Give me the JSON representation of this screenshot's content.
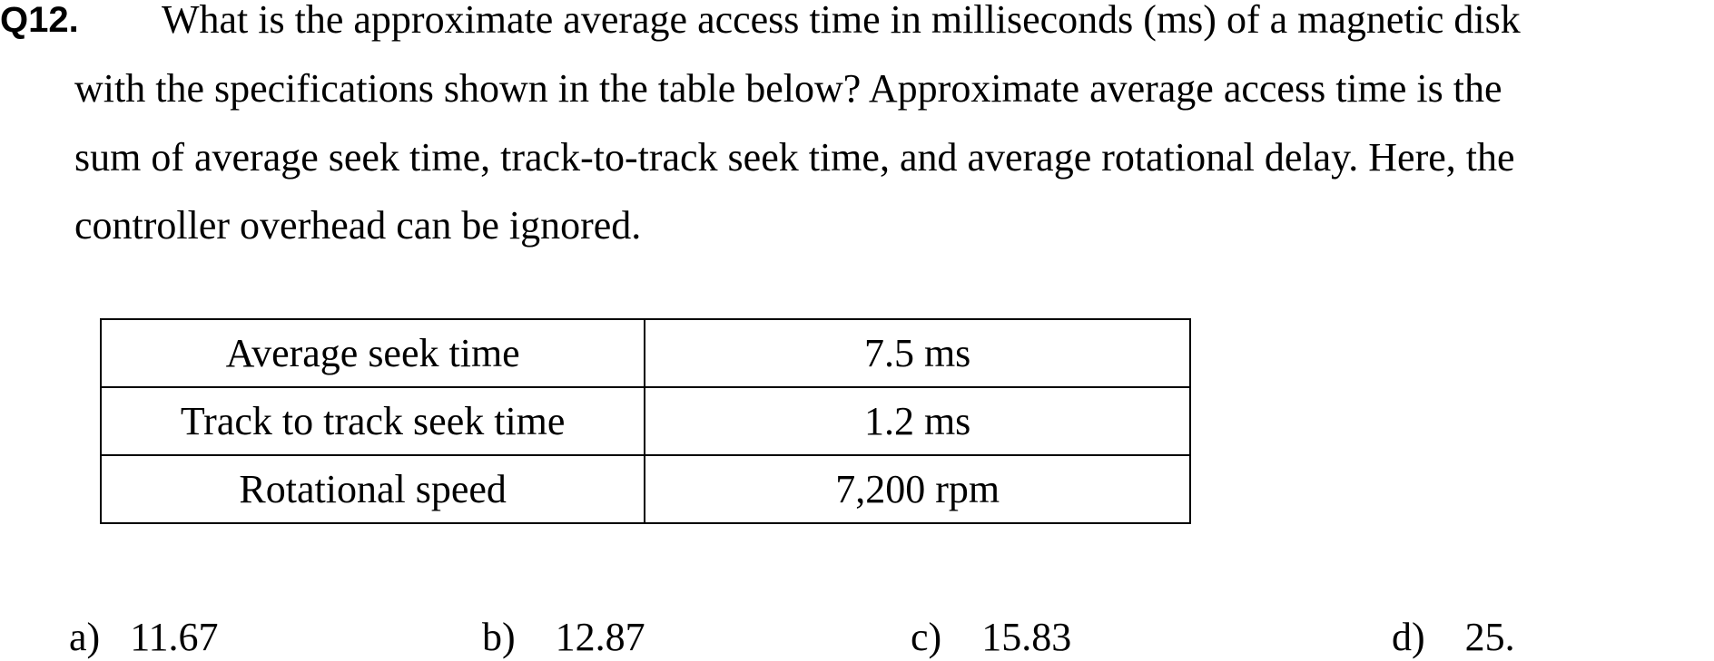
{
  "question": {
    "label": "Q12.",
    "lines": [
      "What is the approximate average access time in milliseconds (ms) of a magnetic disk",
      "with the specifications shown in the table below? Approximate average access time is the",
      "sum of average seek time, track-to-track seek time, and average rotational delay. Here, the",
      "controller overhead can be ignored."
    ]
  },
  "table": {
    "rows": [
      {
        "label": "Average seek time",
        "value": "7.5 ms"
      },
      {
        "label": "Track to track seek time",
        "value": "1.2 ms"
      },
      {
        "label": "Rotational speed",
        "value": "7,200 rpm"
      }
    ]
  },
  "options": [
    {
      "letter": "a)",
      "value": "11.67"
    },
    {
      "letter": "b)",
      "value": "12.87"
    },
    {
      "letter": "c)",
      "value": "15.83"
    },
    {
      "letter": "d)",
      "value": "25."
    }
  ]
}
